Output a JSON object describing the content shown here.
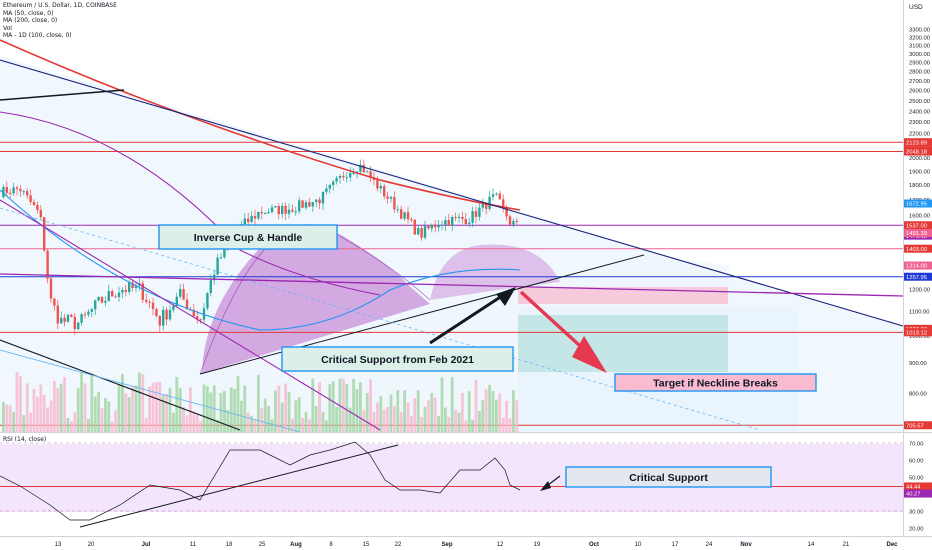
{
  "header": {
    "symbol_line": "Ethereum / U.S. Dollar, 1D, COINBASE",
    "indicators": [
      "MA (50, close, 0)",
      "MA (200, close, 0)",
      "Vol",
      "MA - 1D (100, close, 0)"
    ],
    "rsi_label": "RSI (14, close)"
  },
  "colors": {
    "up": "#26a69a",
    "down": "#ef5350",
    "ma50": "#2196f3",
    "ma200": "#e53935",
    "ma100": "#9c27b0",
    "support": "#e53935",
    "annotation_box": "#2196f3",
    "arrow": "#e53950"
  },
  "chart_data": [
    {
      "type": "line",
      "title": "",
      "price_axis": {
        "unit": "USD",
        "ticks": [
          3300,
          3200,
          3100,
          3000,
          2900,
          2800,
          2700,
          2600,
          2500,
          2400,
          2300,
          2200,
          2000,
          1900,
          1800,
          1700,
          1600,
          1500,
          1400,
          1200,
          1100,
          1000,
          900,
          800
        ],
        "scale": "log",
        "range": [
          760,
          3400
        ]
      },
      "time_axis": {
        "labels": [
          "13",
          "20",
          "Jul",
          "11",
          "18",
          "25",
          "Aug",
          "8",
          "15",
          "22",
          "Sep",
          "12",
          "19",
          "Oct",
          "10",
          "17",
          "24",
          "Nov",
          "14",
          "21",
          "Dec"
        ]
      },
      "price_labels": [
        {
          "value": "2123.89",
          "color": "#e53935"
        },
        {
          "value": "2059.42",
          "color": "#e53935"
        },
        {
          "value": "2048.18",
          "color": "#e53935"
        },
        {
          "value": "1672.95",
          "color": "#2196f3"
        },
        {
          "value": "1537.00",
          "color": "#e53935"
        },
        {
          "value": "1476.15",
          "color": "#9c27b0"
        },
        {
          "value": "1491.39",
          "color": "#f06292"
        },
        {
          "value": "1314.00",
          "color": "#f06292"
        },
        {
          "value": "1403.00",
          "color": "#e53935"
        },
        {
          "value": "1257.95",
          "color": "#1e3ad6"
        },
        {
          "value": "1027.00",
          "color": "#e53935"
        },
        {
          "value": "1013.12",
          "color": "#e53935"
        },
        {
          "value": "705.57",
          "color": "#e53935"
        }
      ],
      "horizontal_levels": [
        2123.89,
        2048.18,
        1537,
        1403,
        1257.95,
        1013.12,
        705.57
      ],
      "annotations": [
        "Inverse Cup & Handle",
        "Critical Support from Feb 2021",
        "Target if Neckline Breaks"
      ]
    },
    {
      "type": "line",
      "title": "RSI (14, close)",
      "y_axis": {
        "ticks": [
          70,
          60,
          50,
          40,
          30,
          20
        ],
        "range": [
          15,
          72
        ]
      },
      "price_labels": [
        {
          "value": "44.44",
          "color": "#e53935"
        },
        {
          "value": "40.27",
          "color": "#9c27b0"
        }
      ],
      "support_level": 44.44,
      "annotations": [
        "Critical Support"
      ]
    }
  ]
}
